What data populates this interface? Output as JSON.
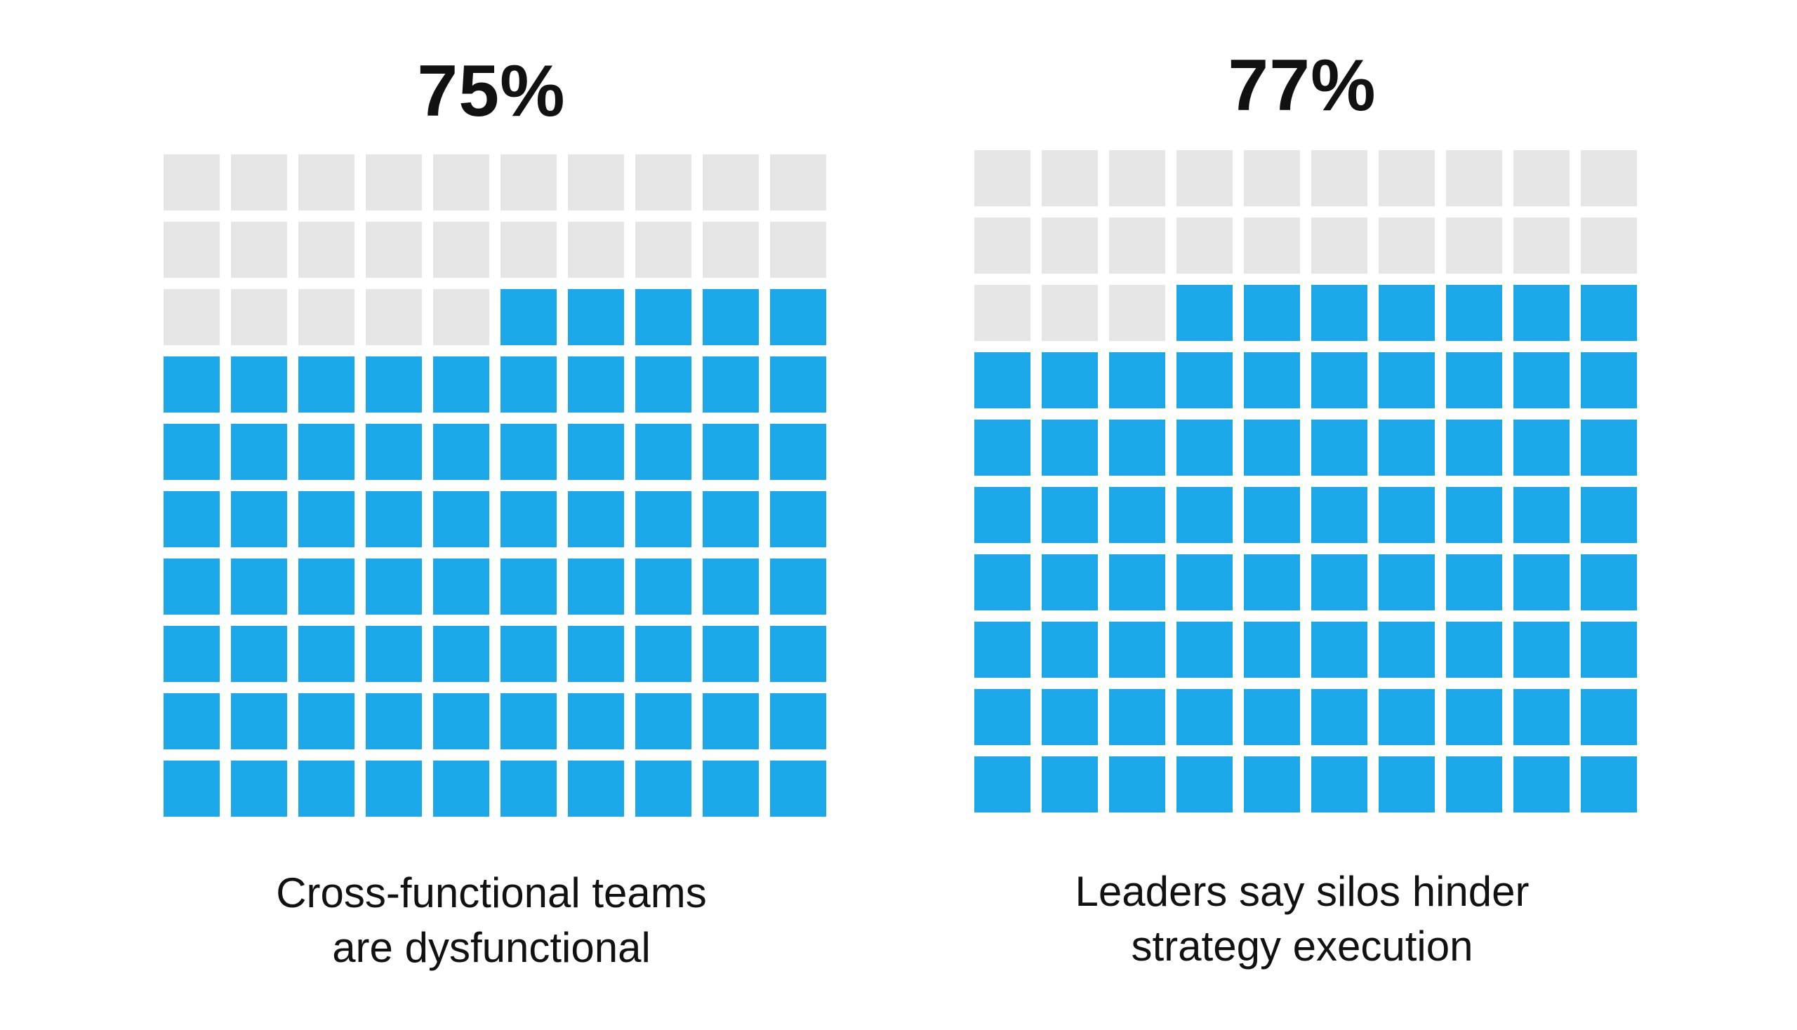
{
  "colors": {
    "filled": "#1ea8ec",
    "empty": "#e6e6e6"
  },
  "panels": [
    {
      "stat": "75%",
      "caption_lines": [
        "Cross-functional teams",
        "are dysfunctional"
      ]
    },
    {
      "stat": "77%",
      "caption_lines": [
        "Leaders say silos hinder",
        "strategy execution"
      ]
    }
  ],
  "chart_data": [
    {
      "type": "waffle",
      "grid": {
        "rows": 10,
        "cols": 10
      },
      "total": 100,
      "filled": 75,
      "fill_from": "bottom"
    },
    {
      "type": "waffle",
      "grid": {
        "rows": 10,
        "cols": 10
      },
      "total": 100,
      "filled": 77,
      "fill_from": "bottom"
    }
  ]
}
